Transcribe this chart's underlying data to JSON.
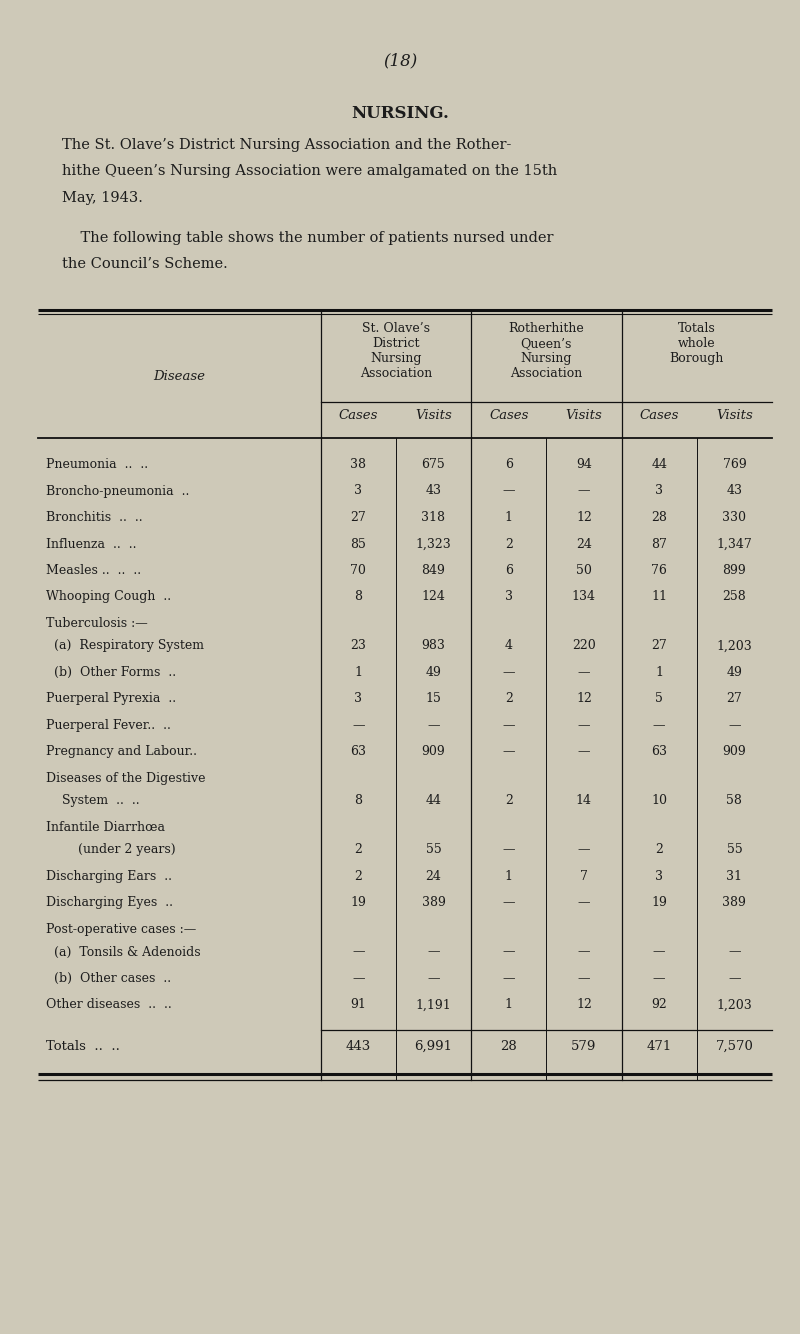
{
  "page_number": "(18)",
  "section_title": "NURSING.",
  "intro_para1": "The St. Olave’s District Nursing Association and the Rother-hithe Queen’s Nursing Association were amalgamated on the 15th May, 1943.",
  "intro_para2": "The following table shows the number of patients nursed under the Council’s Scheme.",
  "col_group_headers": [
    "St. Olave’s\nDistrict\nNursing\nAssociation",
    "Rotherhithe\nQueen’s\nNursing\nAssociation",
    "Totals\nwhole\nBorough"
  ],
  "col_sub_headers": [
    "Cases",
    "Visits",
    "Cases",
    "Visits",
    "Cases",
    "Visits"
  ],
  "disease_col_label": "Disease",
  "rows": [
    {
      "label": "Pneumonia  ..  ..",
      "vals": [
        "38",
        "675",
        "6",
        "94",
        "44",
        "769"
      ],
      "type": "data"
    },
    {
      "label": "Broncho-pneumonia  ..",
      "vals": [
        "3",
        "43",
        "—",
        "—",
        "3",
        "43"
      ],
      "type": "data"
    },
    {
      "label": "Bronchitis  ..  ..",
      "vals": [
        "27",
        "318",
        "1",
        "12",
        "28",
        "330"
      ],
      "type": "data"
    },
    {
      "label": "Influenza  ..  ..",
      "vals": [
        "85",
        "1,323",
        "2",
        "24",
        "87",
        "1,347"
      ],
      "type": "data"
    },
    {
      "label": "Measles ..  ..  ..",
      "vals": [
        "70",
        "849",
        "6",
        "50",
        "76",
        "899"
      ],
      "type": "data"
    },
    {
      "label": "Whooping Cough  ..",
      "vals": [
        "8",
        "124",
        "3",
        "134",
        "11",
        "258"
      ],
      "type": "data"
    },
    {
      "label": "Tuberculosis :—",
      "vals": [
        "",
        "",
        "",
        "",
        "",
        ""
      ],
      "type": "section"
    },
    {
      "label": "  (a)  Respiratory System",
      "vals": [
        "23",
        "983",
        "4",
        "220",
        "27",
        "1,203"
      ],
      "type": "data"
    },
    {
      "label": "  (b)  Other Forms  ..",
      "vals": [
        "1",
        "49",
        "—",
        "—",
        "1",
        "49"
      ],
      "type": "data"
    },
    {
      "label": "Puerperal Pyrexia  ..",
      "vals": [
        "3",
        "15",
        "2",
        "12",
        "5",
        "27"
      ],
      "type": "data"
    },
    {
      "label": "Puerperal Fever..  ..",
      "vals": [
        "—",
        "—",
        "—",
        "—",
        "—",
        "—"
      ],
      "type": "data"
    },
    {
      "label": "Pregnancy and Labour..",
      "vals": [
        "63",
        "909",
        "—",
        "—",
        "63",
        "909"
      ],
      "type": "data"
    },
    {
      "label": "Diseases of the Digestive",
      "vals": [
        "",
        "",
        "",
        "",
        "",
        ""
      ],
      "type": "section"
    },
    {
      "label": "    System  ..  ..",
      "vals": [
        "8",
        "44",
        "2",
        "14",
        "10",
        "58"
      ],
      "type": "data"
    },
    {
      "label": "Infantile Diarrhœa",
      "vals": [
        "",
        "",
        "",
        "",
        "",
        ""
      ],
      "type": "section"
    },
    {
      "label": "        (under 2 years)",
      "vals": [
        "2",
        "55",
        "—",
        "—",
        "2",
        "55"
      ],
      "type": "data"
    },
    {
      "label": "Discharging Ears  ..",
      "vals": [
        "2",
        "24",
        "1",
        "7",
        "3",
        "31"
      ],
      "type": "data"
    },
    {
      "label": "Discharging Eyes  ..",
      "vals": [
        "19",
        "389",
        "—",
        "—",
        "19",
        "389"
      ],
      "type": "data"
    },
    {
      "label": "Post-operative cases :—",
      "vals": [
        "",
        "",
        "",
        "",
        "",
        ""
      ],
      "type": "section"
    },
    {
      "label": "  (a)  Tonsils & Adenoids",
      "vals": [
        "—",
        "—",
        "—",
        "—",
        "—",
        "—"
      ],
      "type": "data"
    },
    {
      "label": "  (b)  Other cases  ..",
      "vals": [
        "—",
        "—",
        "—",
        "—",
        "—",
        "—"
      ],
      "type": "data"
    },
    {
      "label": "Other diseases  ..  ..",
      "vals": [
        "91",
        "1,191",
        "1",
        "12",
        "92",
        "1,203"
      ],
      "type": "data"
    }
  ],
  "totals_row": {
    "label": "Totals  ..  ..",
    "vals": [
      "443",
      "6,991",
      "28",
      "579",
      "471",
      "7,570"
    ]
  },
  "bg_color": "#cec9b8",
  "text_color": "#1c1c1c",
  "line_color": "#111111",
  "fig_width": 8.0,
  "fig_height": 13.34,
  "dpi": 100
}
